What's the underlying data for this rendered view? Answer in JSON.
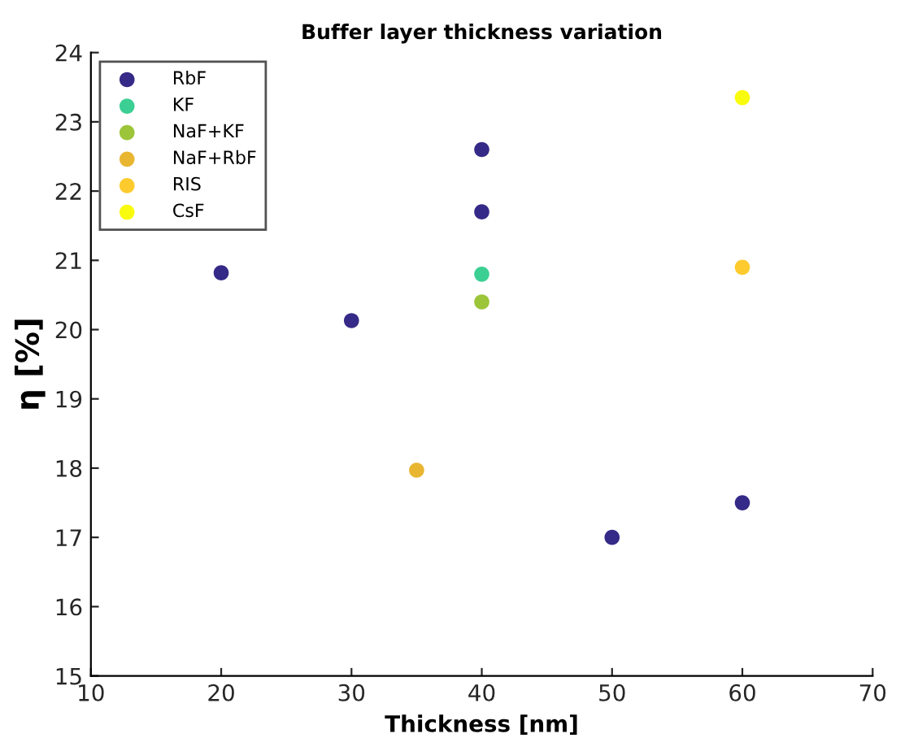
{
  "chart_data": {
    "type": "scatter",
    "title": "Buffer layer thickness variation",
    "xlabel": "Thickness [nm]",
    "ylabel": "η [%]",
    "xlim": [
      10,
      70
    ],
    "ylim": [
      15,
      24
    ],
    "xticks": [
      10,
      20,
      30,
      40,
      50,
      60,
      70
    ],
    "yticks": [
      15,
      16,
      17,
      18,
      19,
      20,
      21,
      22,
      23,
      24
    ],
    "grid": false,
    "legend": "top left",
    "marker": "circle",
    "series": [
      {
        "name": "RbF",
        "color": "#352a87",
        "x": [
          20,
          30,
          40,
          40,
          50,
          60
        ],
        "values": [
          20.82,
          20.13,
          22.6,
          21.7,
          17.0,
          17.5
        ]
      },
      {
        "name": "KF",
        "color": "#3ccf93",
        "x": [
          40
        ],
        "values": [
          20.8
        ]
      },
      {
        "name": "NaF+KF",
        "color": "#9cc53a",
        "x": [
          40
        ],
        "values": [
          20.4
        ]
      },
      {
        "name": "NaF+RbF",
        "color": "#e8b631",
        "x": [
          35
        ],
        "values": [
          17.97
        ]
      },
      {
        "name": "RIS",
        "color": "#fdcb2e",
        "x": [
          60
        ],
        "values": [
          20.9
        ]
      },
      {
        "name": "CsF",
        "color": "#f9fb0e",
        "x": [
          60
        ],
        "values": [
          23.35
        ]
      }
    ]
  }
}
